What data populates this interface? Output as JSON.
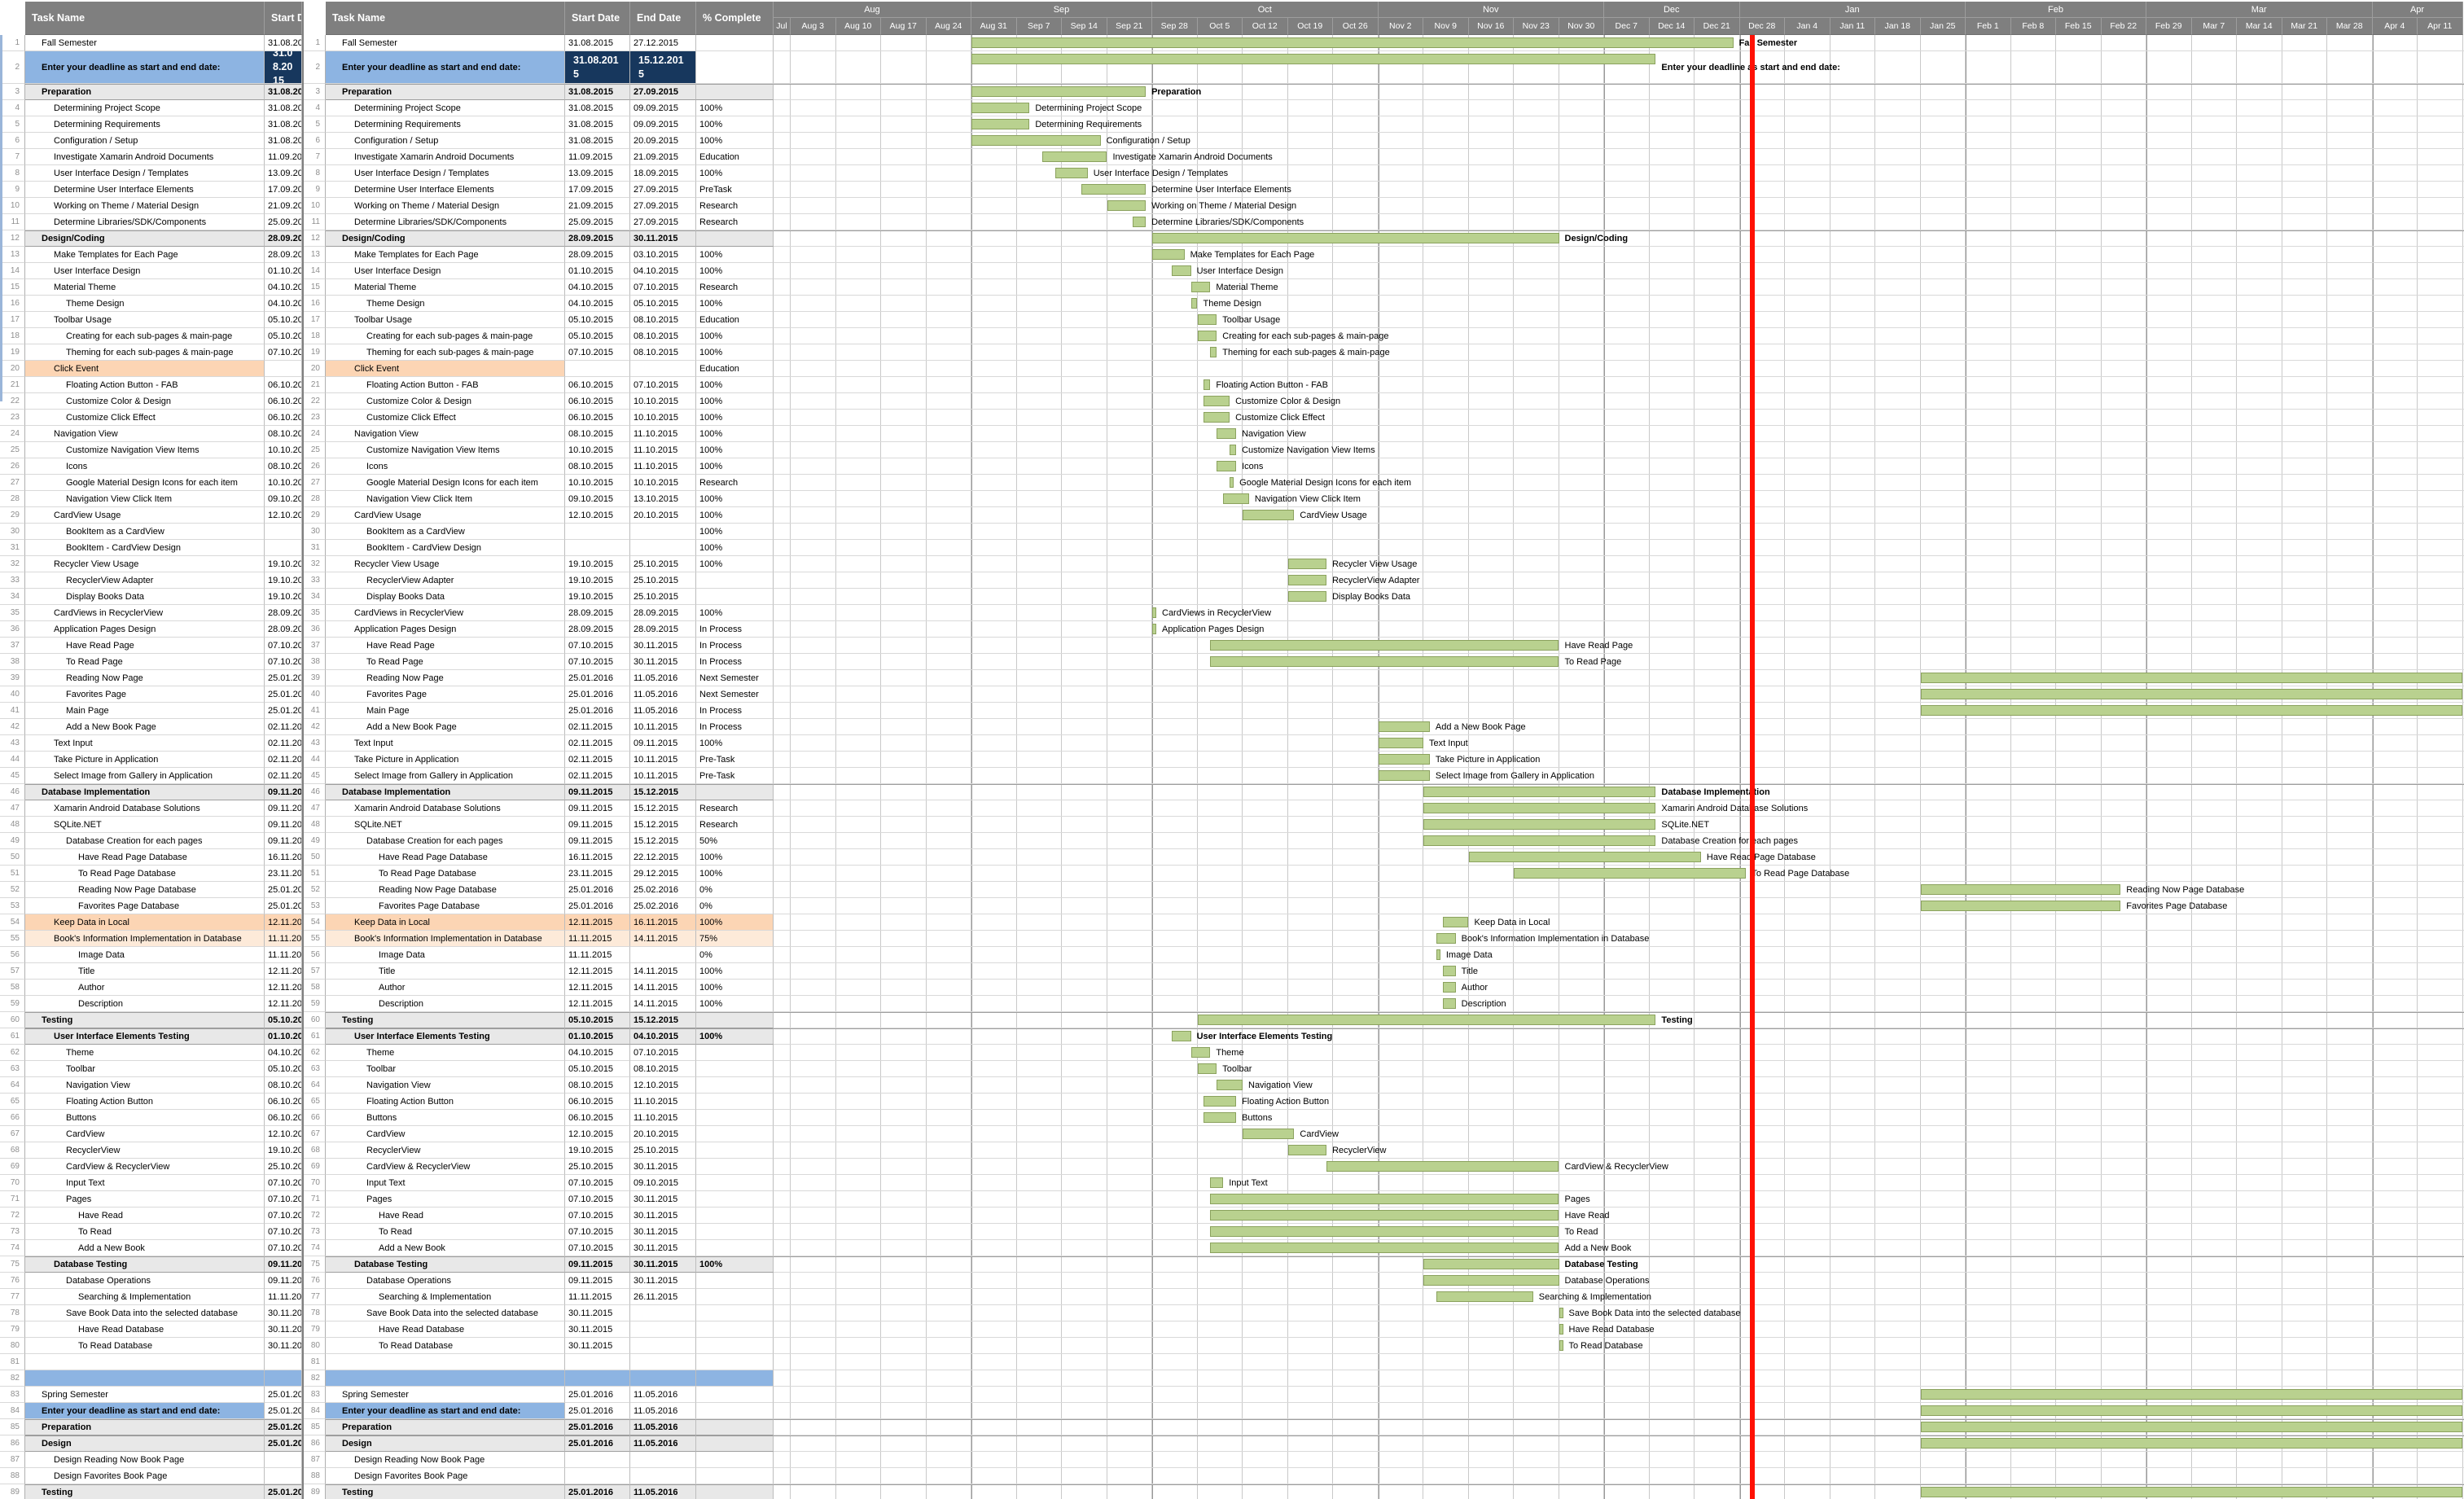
{
  "headers": {
    "task": "Task Name",
    "start": "Start Date",
    "end": "End Date",
    "pct": "% Complete"
  },
  "timeline": {
    "months": [
      {
        "label": "Aug",
        "cells": 5
      },
      {
        "label": "Sep",
        "cells": 4
      },
      {
        "label": "Oct",
        "cells": 5
      },
      {
        "label": "Nov",
        "cells": 5
      },
      {
        "label": "Dec",
        "cells": 3
      },
      {
        "label": "Jan",
        "cells": 5
      },
      {
        "label": "Feb",
        "cells": 4
      },
      {
        "label": "Mar",
        "cells": 5
      },
      {
        "label": "Apr",
        "cells": 2
      }
    ],
    "weeks": [
      "Jul",
      "Aug 3",
      "Aug 10",
      "Aug 17",
      "Aug 24",
      "Aug 31",
      "Sep 7",
      "Sep 14",
      "Sep 21",
      "Sep 28",
      "Oct 5",
      "Oct 12",
      "Oct 19",
      "Oct 26",
      "Nov 2",
      "Nov 9",
      "Nov 16",
      "Nov 23",
      "Nov 30",
      "Dec 7",
      "Dec 14",
      "Dec 21",
      "Dec 28",
      "Jan 4",
      "Jan 11",
      "Jan 18",
      "Jan 25",
      "Feb 1",
      "Feb 8",
      "Feb 15",
      "Feb 22",
      "Feb 29",
      "Mar 7",
      "Mar 14",
      "Mar 21",
      "Mar 28",
      "Apr 4",
      "Apr 11"
    ],
    "week_start_date": "03.08.2015",
    "today": "30.12.2015"
  },
  "colors": {
    "header_bg": "#7f7f7f",
    "header_text": "#ffffff",
    "bar_fill": "#b9d18f",
    "bar_border": "#8ba25e",
    "summary_bg": "#e8e8e8",
    "blue": "#8db4e2",
    "navy": "#17375d",
    "orange": "#fcd5b4",
    "orange_light": "#fdead9",
    "today_line": "#ff1105",
    "grid": "#c9c9c9"
  },
  "rows": [
    {
      "n": 1,
      "name": "Fall Semester",
      "start": "31.08.2015",
      "end": "27.12.2015",
      "pct": "",
      "style": "n",
      "indent": 0,
      "label_bold": true
    },
    {
      "n": 2,
      "name": "Enter your deadline as start and end date:",
      "start": "31.08.2015",
      "end": "15.12.2015",
      "pct": "",
      "style": "d",
      "indent": 0,
      "label_bold": true
    },
    {
      "n": 3,
      "name": "Preparation",
      "start": "31.08.2015",
      "end": "27.09.2015",
      "pct": "",
      "style": "s",
      "indent": 0,
      "label_bold": true
    },
    {
      "n": 4,
      "name": "Determining Project Scope",
      "start": "31.08.2015",
      "end": "09.09.2015",
      "pct": "100%",
      "style": "n",
      "indent": 1
    },
    {
      "n": 5,
      "name": "Determining Requirements",
      "start": "31.08.2015",
      "end": "09.09.2015",
      "pct": "100%",
      "style": "n",
      "indent": 1
    },
    {
      "n": 6,
      "name": "Configuration / Setup",
      "start": "31.08.2015",
      "end": "20.09.2015",
      "pct": "100%",
      "style": "n",
      "indent": 1
    },
    {
      "n": 7,
      "name": "Investigate Xamarin Android Documents",
      "start": "11.09.2015",
      "end": "21.09.2015",
      "pct": "Education",
      "style": "n",
      "indent": 1
    },
    {
      "n": 8,
      "name": "User Interface Design / Templates",
      "start": "13.09.2015",
      "end": "18.09.2015",
      "pct": "100%",
      "style": "n",
      "indent": 1
    },
    {
      "n": 9,
      "name": "Determine User Interface Elements",
      "start": "17.09.2015",
      "end": "27.09.2015",
      "pct": "PreTask",
      "style": "n",
      "indent": 1
    },
    {
      "n": 10,
      "name": "Working on Theme / Material Design",
      "start": "21.09.2015",
      "end": "27.09.2015",
      "pct": "Research",
      "style": "n",
      "indent": 1
    },
    {
      "n": 11,
      "name": "Determine Libraries/SDK/Components",
      "start": "25.09.2015",
      "end": "27.09.2015",
      "pct": "Research",
      "style": "n",
      "indent": 1
    },
    {
      "n": 12,
      "name": "Design/Coding",
      "start": "28.09.2015",
      "end": "30.11.2015",
      "pct": "",
      "style": "s",
      "indent": 0,
      "label_bold": true
    },
    {
      "n": 13,
      "name": "Make Templates for Each Page",
      "start": "28.09.2015",
      "end": "03.10.2015",
      "pct": "100%",
      "style": "n",
      "indent": 1
    },
    {
      "n": 14,
      "name": "User Interface Design",
      "start": "01.10.2015",
      "end": "04.10.2015",
      "pct": "100%",
      "style": "n",
      "indent": 1
    },
    {
      "n": 15,
      "name": "Material Theme",
      "start": "04.10.2015",
      "end": "07.10.2015",
      "pct": "Research",
      "style": "n",
      "indent": 1
    },
    {
      "n": 16,
      "name": "Theme Design",
      "start": "04.10.2015",
      "end": "05.10.2015",
      "pct": "100%",
      "style": "n",
      "indent": 2
    },
    {
      "n": 17,
      "name": "Toolbar Usage",
      "start": "05.10.2015",
      "end": "08.10.2015",
      "pct": "Education",
      "style": "n",
      "indent": 1
    },
    {
      "n": 18,
      "name": "Creating for each sub-pages & main-page",
      "start": "05.10.2015",
      "end": "08.10.2015",
      "pct": "100%",
      "style": "n",
      "indent": 2
    },
    {
      "n": 19,
      "name": "Theming for each sub-pages & main-page",
      "start": "07.10.2015",
      "end": "08.10.2015",
      "pct": "100%",
      "style": "n",
      "indent": 2
    },
    {
      "n": 20,
      "name": "Click Event",
      "start": "",
      "end": "",
      "pct": "Education",
      "style": "o",
      "indent": 1
    },
    {
      "n": 21,
      "name": "Floating Action Button - FAB",
      "start": "06.10.2015",
      "end": "07.10.2015",
      "pct": "100%",
      "style": "n",
      "indent": 2
    },
    {
      "n": 22,
      "name": "Customize Color & Design",
      "start": "06.10.2015",
      "end": "10.10.2015",
      "pct": "100%",
      "style": "n",
      "indent": 2
    },
    {
      "n": 23,
      "name": "Customize Click Effect",
      "start": "06.10.2015",
      "end": "10.10.2015",
      "pct": "100%",
      "style": "n",
      "indent": 2
    },
    {
      "n": 24,
      "name": "Navigation View",
      "start": "08.10.2015",
      "end": "11.10.2015",
      "pct": "100%",
      "style": "n",
      "indent": 1
    },
    {
      "n": 25,
      "name": "Customize Navigation View Items",
      "start": "10.10.2015",
      "end": "11.10.2015",
      "pct": "100%",
      "style": "n",
      "indent": 2
    },
    {
      "n": 26,
      "name": "Icons",
      "start": "08.10.2015",
      "end": "11.10.2015",
      "pct": "100%",
      "style": "n",
      "indent": 2
    },
    {
      "n": 27,
      "name": "Google Material Design Icons for each item",
      "start": "10.10.2015",
      "end": "10.10.2015",
      "pct": "Research",
      "style": "n",
      "indent": 2
    },
    {
      "n": 28,
      "name": "Navigation View Click Item",
      "start": "09.10.2015",
      "end": "13.10.2015",
      "pct": "100%",
      "style": "n",
      "indent": 2
    },
    {
      "n": 29,
      "name": "CardView Usage",
      "start": "12.10.2015",
      "end": "20.10.2015",
      "pct": "100%",
      "style": "n",
      "indent": 1
    },
    {
      "n": 30,
      "name": "BookItem as a CardView",
      "start": "",
      "end": "",
      "pct": "100%",
      "style": "n",
      "indent": 2
    },
    {
      "n": 31,
      "name": "BookItem - CardView Design",
      "start": "",
      "end": "",
      "pct": "100%",
      "style": "n",
      "indent": 2
    },
    {
      "n": 32,
      "name": "Recycler View Usage",
      "start": "19.10.2015",
      "end": "25.10.2015",
      "pct": "100%",
      "style": "n",
      "indent": 1
    },
    {
      "n": 33,
      "name": "RecyclerView Adapter",
      "start": "19.10.2015",
      "end": "25.10.2015",
      "pct": "",
      "style": "n",
      "indent": 2
    },
    {
      "n": 34,
      "name": "Display Books Data",
      "start": "19.10.2015",
      "end": "25.10.2015",
      "pct": "",
      "style": "n",
      "indent": 2
    },
    {
      "n": 35,
      "name": "CardViews in RecyclerView",
      "start": "28.09.2015",
      "end": "28.09.2015",
      "pct": "100%",
      "style": "n",
      "indent": 1
    },
    {
      "n": 36,
      "name": "Application Pages Design",
      "start": "28.09.2015",
      "end": "28.09.2015",
      "pct": "In Process",
      "style": "n",
      "indent": 1
    },
    {
      "n": 37,
      "name": "Have Read Page",
      "start": "07.10.2015",
      "end": "30.11.2015",
      "pct": "In Process",
      "style": "n",
      "indent": 2
    },
    {
      "n": 38,
      "name": "To Read Page",
      "start": "07.10.2015",
      "end": "30.11.2015",
      "pct": "In Process",
      "style": "n",
      "indent": 2
    },
    {
      "n": 39,
      "name": "Reading Now Page",
      "start": "25.01.2016",
      "end": "11.05.2016",
      "pct": "Next Semester",
      "style": "n",
      "indent": 2
    },
    {
      "n": 40,
      "name": "Favorites Page",
      "start": "25.01.2016",
      "end": "11.05.2016",
      "pct": "Next Semester",
      "style": "n",
      "indent": 2
    },
    {
      "n": 41,
      "name": "Main Page",
      "start": "25.01.2016",
      "end": "11.05.2016",
      "pct": "In Process",
      "style": "n",
      "indent": 2
    },
    {
      "n": 42,
      "name": "Add a New Book Page",
      "start": "02.11.2015",
      "end": "10.11.2015",
      "pct": "In Process",
      "style": "n",
      "indent": 2
    },
    {
      "n": 43,
      "name": "Text Input",
      "start": "02.11.2015",
      "end": "09.11.2015",
      "pct": "100%",
      "style": "n",
      "indent": 1
    },
    {
      "n": 44,
      "name": "Take Picture in Application",
      "start": "02.11.2015",
      "end": "10.11.2015",
      "pct": "Pre-Task",
      "style": "n",
      "indent": 1
    },
    {
      "n": 45,
      "name": "Select Image from Gallery in Application",
      "start": "02.11.2015",
      "end": "10.11.2015",
      "pct": "Pre-Task",
      "style": "n",
      "indent": 1
    },
    {
      "n": 46,
      "name": "Database Implementation",
      "start": "09.11.2015",
      "end": "15.12.2015",
      "pct": "",
      "style": "s",
      "indent": 0,
      "label_bold": true
    },
    {
      "n": 47,
      "name": "Xamarin Android Database Solutions",
      "start": "09.11.2015",
      "end": "15.12.2015",
      "pct": "Research",
      "style": "n",
      "indent": 1
    },
    {
      "n": 48,
      "name": "SQLite.NET",
      "start": "09.11.2015",
      "end": "15.12.2015",
      "pct": "Research",
      "style": "n",
      "indent": 1
    },
    {
      "n": 49,
      "name": "Database Creation for each pages",
      "start": "09.11.2015",
      "end": "15.12.2015",
      "pct": "50%",
      "style": "n",
      "indent": 2
    },
    {
      "n": 50,
      "name": "Have Read Page Database",
      "start": "16.11.2015",
      "end": "22.12.2015",
      "pct": "100%",
      "style": "n",
      "indent": 3
    },
    {
      "n": 51,
      "name": "To Read Page Database",
      "start": "23.11.2015",
      "end": "29.12.2015",
      "pct": "100%",
      "style": "n",
      "indent": 3
    },
    {
      "n": 52,
      "name": "Reading Now Page Database",
      "start": "25.01.2016",
      "end": "25.02.2016",
      "pct": "0%",
      "style": "n",
      "indent": 3
    },
    {
      "n": 53,
      "name": "Favorites Page Database",
      "start": "25.01.2016",
      "end": "25.02.2016",
      "pct": "0%",
      "style": "n",
      "indent": 3
    },
    {
      "n": 54,
      "name": "Keep Data in Local",
      "start": "12.11.2015",
      "end": "16.11.2015",
      "pct": "100%",
      "style": "of",
      "indent": 1
    },
    {
      "n": 55,
      "name": "Book's Information Implementation in Database",
      "start": "11.11.2015",
      "end": "14.11.2015",
      "pct": "75%",
      "style": "olf",
      "indent": 1
    },
    {
      "n": 56,
      "name": "Image Data",
      "start": "11.11.2015",
      "end": "",
      "pct": "0%",
      "style": "n",
      "indent": 3
    },
    {
      "n": 57,
      "name": "Title",
      "start": "12.11.2015",
      "end": "14.11.2015",
      "pct": "100%",
      "style": "n",
      "indent": 3
    },
    {
      "n": 58,
      "name": "Author",
      "start": "12.11.2015",
      "end": "14.11.2015",
      "pct": "100%",
      "style": "n",
      "indent": 3
    },
    {
      "n": 59,
      "name": "Description",
      "start": "12.11.2015",
      "end": "14.11.2015",
      "pct": "100%",
      "style": "n",
      "indent": 3
    },
    {
      "n": 60,
      "name": "Testing",
      "start": "05.10.2015",
      "end": "15.12.2015",
      "pct": "",
      "style": "s",
      "indent": 0,
      "label_bold": true
    },
    {
      "n": 61,
      "name": "User Interface Elements Testing",
      "start": "01.10.2015",
      "end": "04.10.2015",
      "pct": "100%",
      "style": "s2",
      "indent": 1,
      "label_bold": true
    },
    {
      "n": 62,
      "name": "Theme",
      "start": "04.10.2015",
      "end": "07.10.2015",
      "pct": "",
      "style": "n",
      "indent": 2
    },
    {
      "n": 63,
      "name": "Toolbar",
      "start": "05.10.2015",
      "end": "08.10.2015",
      "pct": "",
      "style": "n",
      "indent": 2
    },
    {
      "n": 64,
      "name": "Navigation View",
      "start": "08.10.2015",
      "end": "12.10.2015",
      "pct": "",
      "style": "n",
      "indent": 2
    },
    {
      "n": 65,
      "name": "Floating Action Button",
      "start": "06.10.2015",
      "end": "11.10.2015",
      "pct": "",
      "style": "n",
      "indent": 2
    },
    {
      "n": 66,
      "name": "Buttons",
      "start": "06.10.2015",
      "end": "11.10.2015",
      "pct": "",
      "style": "n",
      "indent": 2
    },
    {
      "n": 67,
      "name": "CardView",
      "start": "12.10.2015",
      "end": "20.10.2015",
      "pct": "",
      "style": "n",
      "indent": 2
    },
    {
      "n": 68,
      "name": "RecyclerView",
      "start": "19.10.2015",
      "end": "25.10.2015",
      "pct": "",
      "style": "n",
      "indent": 2
    },
    {
      "n": 69,
      "name": "CardView & RecyclerView",
      "start": "25.10.2015",
      "end": "30.11.2015",
      "pct": "",
      "style": "n",
      "indent": 2
    },
    {
      "n": 70,
      "name": "Input Text",
      "start": "07.10.2015",
      "end": "09.10.2015",
      "pct": "",
      "style": "n",
      "indent": 2
    },
    {
      "n": 71,
      "name": "Pages",
      "start": "07.10.2015",
      "end": "30.11.2015",
      "pct": "",
      "style": "n",
      "indent": 2
    },
    {
      "n": 72,
      "name": "Have Read",
      "start": "07.10.2015",
      "end": "30.11.2015",
      "pct": "",
      "style": "n",
      "indent": 3
    },
    {
      "n": 73,
      "name": "To Read",
      "start": "07.10.2015",
      "end": "30.11.2015",
      "pct": "",
      "style": "n",
      "indent": 3
    },
    {
      "n": 74,
      "name": "Add a New Book",
      "start": "07.10.2015",
      "end": "30.11.2015",
      "pct": "",
      "style": "n",
      "indent": 3
    },
    {
      "n": 75,
      "name": "Database Testing",
      "start": "09.11.2015",
      "end": "30.11.2015",
      "pct": "100%",
      "style": "s2",
      "indent": 1,
      "label_bold": true
    },
    {
      "n": 76,
      "name": "Database Operations",
      "start": "09.11.2015",
      "end": "30.11.2015",
      "pct": "",
      "style": "n",
      "indent": 2
    },
    {
      "n": 77,
      "name": "Searching & Implementation",
      "start": "11.11.2015",
      "end": "26.11.2015",
      "pct": "",
      "style": "n",
      "indent": 3
    },
    {
      "n": 78,
      "name": "Save Book Data into the selected database",
      "start": "30.11.2015",
      "end": "",
      "pct": "",
      "style": "n",
      "indent": 2
    },
    {
      "n": 79,
      "name": "Have Read Database",
      "start": "30.11.2015",
      "end": "",
      "pct": "",
      "style": "n",
      "indent": 3
    },
    {
      "n": 80,
      "name": "To Read Database",
      "start": "30.11.2015",
      "end": "",
      "pct": "",
      "style": "n",
      "indent": 3
    },
    {
      "n": 81,
      "name": "",
      "start": "",
      "end": "",
      "pct": "",
      "style": "n",
      "indent": 0
    },
    {
      "n": 82,
      "name": "",
      "start": "",
      "end": "",
      "pct": "",
      "style": "bf",
      "indent": 0
    },
    {
      "n": 83,
      "name": "Spring Semester",
      "start": "25.01.2016",
      "end": "11.05.2016",
      "pct": "",
      "style": "n",
      "indent": 0
    },
    {
      "n": 84,
      "name": "Enter your deadline as start and end date:",
      "start": "25.01.2016",
      "end": "11.05.2016",
      "pct": "",
      "style": "d2",
      "indent": 0
    },
    {
      "n": 85,
      "name": "Preparation",
      "start": "25.01.2016",
      "end": "11.05.2016",
      "pct": "",
      "style": "s",
      "indent": 0
    },
    {
      "n": 86,
      "name": "Design",
      "start": "25.01.2016",
      "end": "11.05.2016",
      "pct": "",
      "style": "s",
      "indent": 0
    },
    {
      "n": 87,
      "name": "Design Reading Now Book Page",
      "start": "",
      "end": "",
      "pct": "",
      "style": "n",
      "indent": 1
    },
    {
      "n": 88,
      "name": "Design Favorites Book Page",
      "start": "",
      "end": "",
      "pct": "",
      "style": "n",
      "indent": 1
    },
    {
      "n": 89,
      "name": "Testing",
      "start": "25.01.2016",
      "end": "11.05.2016",
      "pct": "",
      "style": "s",
      "indent": 0
    }
  ]
}
